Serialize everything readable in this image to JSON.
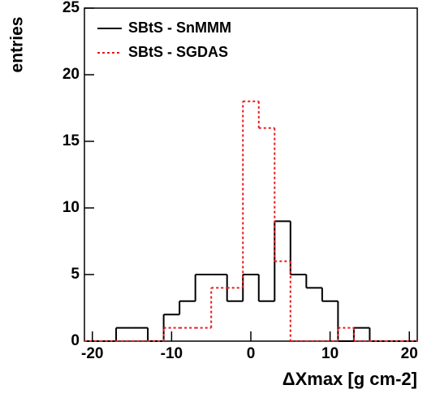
{
  "chart_data": {
    "type": "histogram",
    "y_label": "entries",
    "x_label": "ΔXmax [g cm-2]",
    "bins": [
      -21,
      -19,
      -17,
      -15,
      -13,
      -11,
      -9,
      -7,
      -5,
      -3,
      -1,
      1,
      3,
      5,
      7,
      9,
      11,
      13,
      15,
      17,
      19,
      21
    ],
    "series": [
      {
        "name": "SBtS - SnMMM",
        "color": "#000000",
        "line_style": "solid",
        "values": [
          0,
          0,
          1,
          1,
          0,
          2,
          3,
          5,
          5,
          3,
          5,
          3,
          9,
          5,
          4,
          3,
          0,
          1,
          0,
          0,
          0
        ]
      },
      {
        "name": "SBtS - SGDAS",
        "color": "#e8191c",
        "line_style": "dotted",
        "values": [
          0,
          0,
          0,
          0,
          0,
          1,
          1,
          1,
          4,
          4,
          18,
          16,
          6,
          0,
          0,
          0,
          1,
          0,
          0,
          0,
          0
        ]
      }
    ],
    "xlim": [
      -21,
      21
    ],
    "xticks": [
      -20,
      -10,
      0,
      10,
      20
    ],
    "ylim": [
      0,
      25
    ],
    "yticks": [
      0,
      5,
      10,
      15,
      20,
      25
    ],
    "legend": "upper left"
  }
}
